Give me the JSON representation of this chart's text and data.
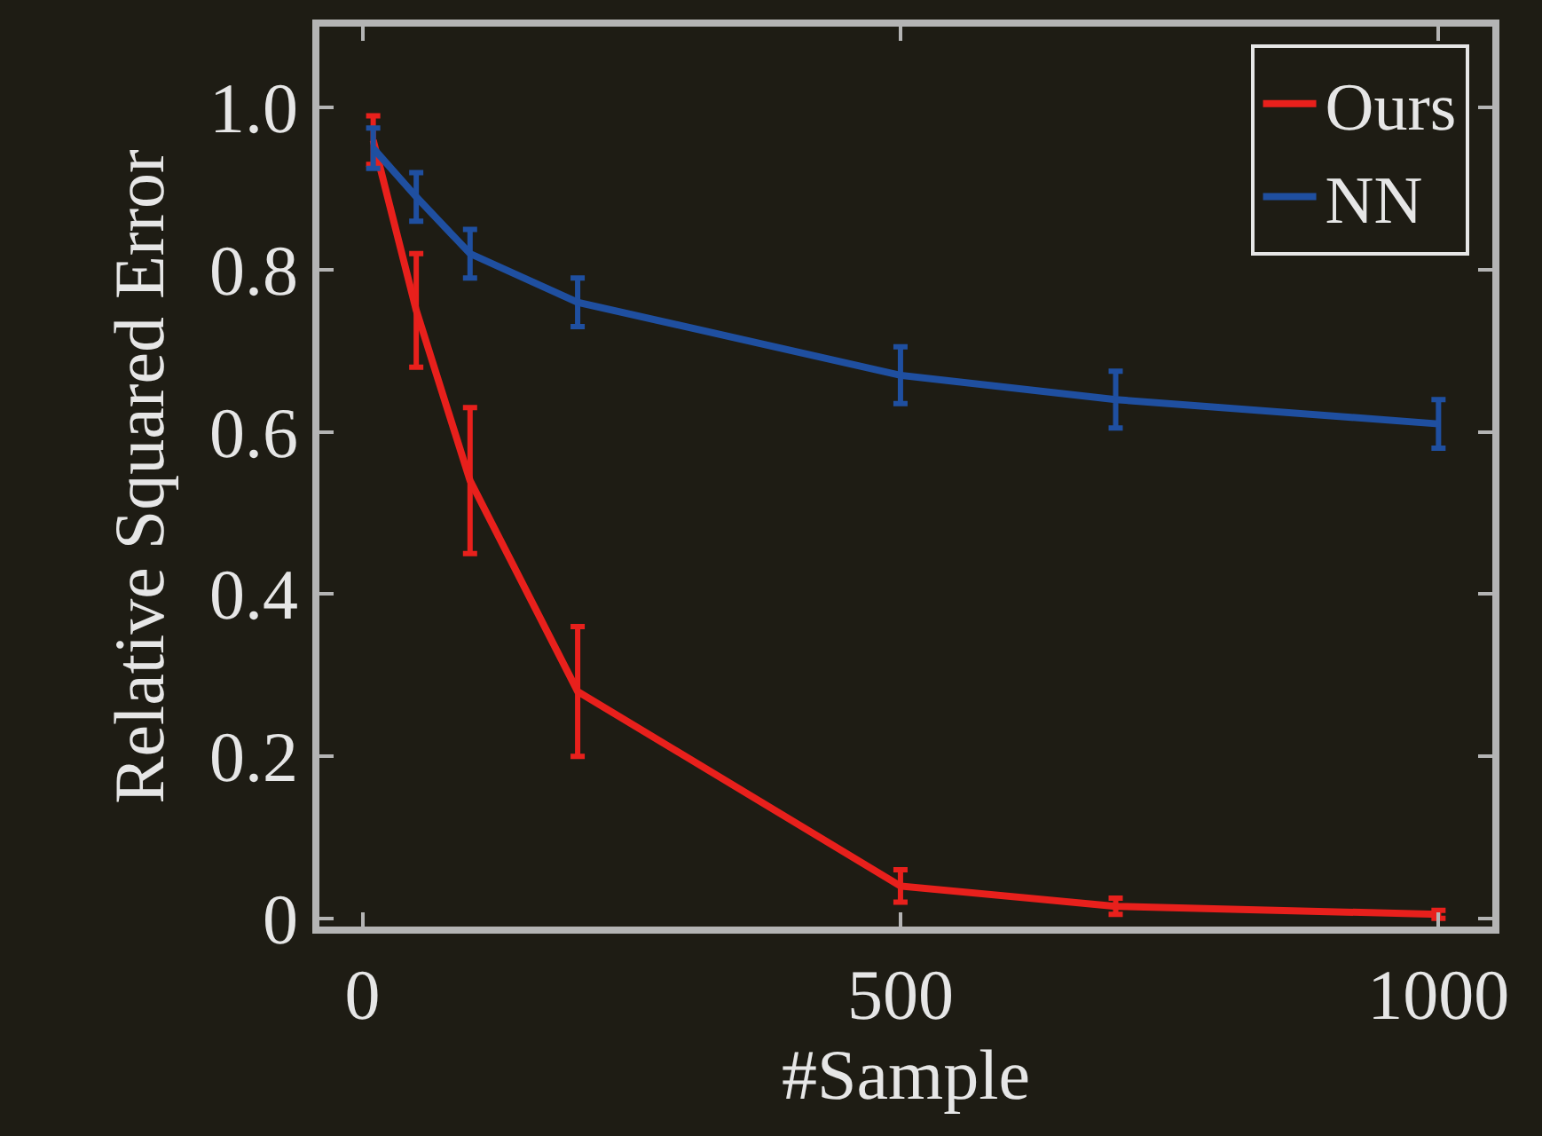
{
  "chart_data": {
    "type": "line",
    "xlabel": "#Sample",
    "ylabel": "Relative Squared Error",
    "x": [
      10,
      50,
      100,
      200,
      500,
      700,
      1000
    ],
    "series": [
      {
        "name": "Ours",
        "color": "#e8201c",
        "values": [
          0.96,
          0.75,
          0.54,
          0.28,
          0.04,
          0.015,
          0.005
        ],
        "errors": [
          0.03,
          0.07,
          0.09,
          0.08,
          0.02,
          0.01,
          0.005
        ]
      },
      {
        "name": "NN",
        "color": "#1f4fa0",
        "values": [
          0.95,
          0.89,
          0.82,
          0.76,
          0.67,
          0.64,
          0.61
        ],
        "errors": [
          0.025,
          0.03,
          0.03,
          0.03,
          0.035,
          0.035,
          0.03
        ]
      }
    ],
    "xlim": [
      -40,
      1050
    ],
    "xticks": [
      0,
      500,
      1000
    ],
    "ylim": [
      -0.01,
      1.1
    ],
    "yticks": [
      0,
      {
        "value": 0.2,
        "label": "0.2"
      },
      {
        "value": 0.4,
        "label": "0.4"
      },
      {
        "value": 0.6,
        "label": "0.6"
      },
      {
        "value": 0.8,
        "label": "0.8"
      },
      {
        "value": 1,
        "label": "1.0"
      }
    ],
    "legend": "top right",
    "marker": "none",
    "line_style": "solid"
  }
}
